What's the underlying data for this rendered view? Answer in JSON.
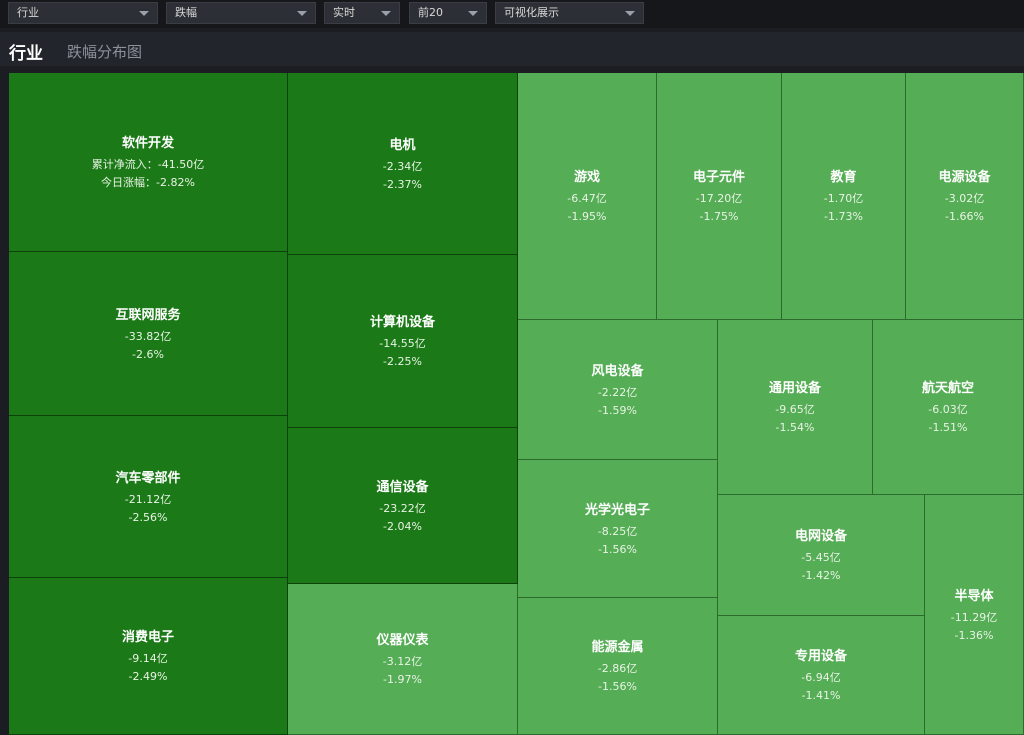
{
  "filters": {
    "category": "行业",
    "metric": "跌幅",
    "time": "实时",
    "count": "前20",
    "view": "可视化展示"
  },
  "header": {
    "title": "行业",
    "subtitle": "跌幅分布图"
  },
  "colors": {
    "dark_tile": "#1b7a17",
    "light_tile": "#55ad55",
    "background": "#1b1d22"
  },
  "tiles": [
    {
      "name": "软件开发",
      "flow": "累计净流入：-41.50亿",
      "change": "今日涨幅：-2.82%"
    },
    {
      "name": "互联网服务",
      "flow": "-33.82亿",
      "change": "-2.6%"
    },
    {
      "name": "汽车零部件",
      "flow": "-21.12亿",
      "change": "-2.56%"
    },
    {
      "name": "消费电子",
      "flow": "-9.14亿",
      "change": "-2.49%"
    },
    {
      "name": "电机",
      "flow": "-2.34亿",
      "change": "-2.37%"
    },
    {
      "name": "计算机设备",
      "flow": "-14.55亿",
      "change": "-2.25%"
    },
    {
      "name": "通信设备",
      "flow": "-23.22亿",
      "change": "-2.04%"
    },
    {
      "name": "仪器仪表",
      "flow": "-3.12亿",
      "change": "-1.97%"
    },
    {
      "name": "游戏",
      "flow": "-6.47亿",
      "change": "-1.95%"
    },
    {
      "name": "电子元件",
      "flow": "-17.20亿",
      "change": "-1.75%"
    },
    {
      "name": "教育",
      "flow": "-1.70亿",
      "change": "-1.73%"
    },
    {
      "name": "电源设备",
      "flow": "-3.02亿",
      "change": "-1.66%"
    },
    {
      "name": "风电设备",
      "flow": "-2.22亿",
      "change": "-1.59%"
    },
    {
      "name": "通用设备",
      "flow": "-9.65亿",
      "change": "-1.54%"
    },
    {
      "name": "航天航空",
      "flow": "-6.03亿",
      "change": "-1.51%"
    },
    {
      "name": "光学光电子",
      "flow": "-8.25亿",
      "change": "-1.56%"
    },
    {
      "name": "电网设备",
      "flow": "-5.45亿",
      "change": "-1.42%"
    },
    {
      "name": "半导体",
      "flow": "-11.29亿",
      "change": "-1.36%"
    },
    {
      "name": "能源金属",
      "flow": "-2.86亿",
      "change": "-1.56%"
    },
    {
      "name": "专用设备",
      "flow": "-6.94亿",
      "change": "-1.41%"
    }
  ]
}
